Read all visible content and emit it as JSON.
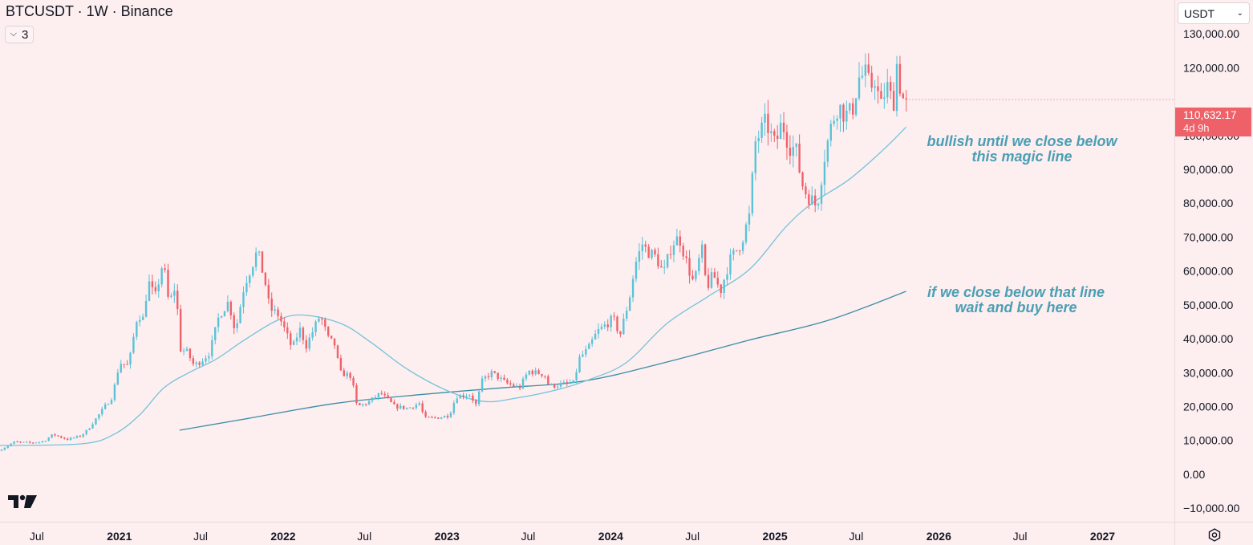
{
  "header": {
    "title": "BTCUSDT · 1W · Binance",
    "indicators_count": "3",
    "currency": "USDT"
  },
  "price_badge": {
    "price": "110,632.17",
    "countdown": "4d 9h",
    "color": "#ef6169"
  },
  "annotations": [
    {
      "lines": [
        "bullish until we close below",
        "this magic line"
      ]
    },
    {
      "lines": [
        "if we close below that line",
        "wait and buy here"
      ]
    }
  ],
  "colors": {
    "up": "#5ac3d8",
    "down": "#ef6169",
    "ma_fast": "#74c4da",
    "ma_slow": "#3b8ea5",
    "background": "#fdeef0",
    "note": "#4a9fb4"
  },
  "icons": {
    "logo": "tradingview-logo-icon",
    "settings": "gear-icon",
    "dropdown": "chevron-down-icon"
  },
  "chart_data": {
    "type": "candlestick",
    "symbol": "BTCUSDT",
    "interval": "1W",
    "exchange": "Binance",
    "y_tick_labels": [
      "130,000.00",
      "120,000.00",
      "110,632.17",
      "100,000.00",
      "90,000.00",
      "80,000.00",
      "70,000.00",
      "60,000.00",
      "50,000.00",
      "40,000.00",
      "30,000.00",
      "20,000.00",
      "10,000.00",
      "0.00",
      "−10,000.00"
    ],
    "y_ticks": [
      130000,
      120000,
      100000,
      90000,
      80000,
      70000,
      60000,
      50000,
      40000,
      30000,
      20000,
      10000,
      0,
      -10000
    ],
    "ylim": [
      -14000,
      140000
    ],
    "x_ticks": [
      {
        "label": "Jul",
        "date": "2020-07-01"
      },
      {
        "label": "2021",
        "date": "2021-01-01"
      },
      {
        "label": "Jul",
        "date": "2021-07-01"
      },
      {
        "label": "2022",
        "date": "2022-01-01"
      },
      {
        "label": "Jul",
        "date": "2022-07-01"
      },
      {
        "label": "2023",
        "date": "2023-01-01"
      },
      {
        "label": "Jul",
        "date": "2023-07-01"
      },
      {
        "label": "2024",
        "date": "2024-01-01"
      },
      {
        "label": "Jul",
        "date": "2024-07-01"
      },
      {
        "label": "2025",
        "date": "2025-01-01"
      },
      {
        "label": "Jul",
        "date": "2025-07-01"
      },
      {
        "label": "2026",
        "date": "2026-01-01"
      },
      {
        "label": "Jul",
        "date": "2026-07-01"
      },
      {
        "label": "2027",
        "date": "2027-01-01"
      }
    ],
    "xlim": [
      "2020-04-10",
      "2027-06-10"
    ],
    "last_price": 110632.17,
    "price_path": [
      [
        "2020-04-10",
        6900
      ],
      [
        "2020-05-15",
        9500
      ],
      [
        "2020-06-20",
        9300
      ],
      [
        "2020-07-20",
        9700
      ],
      [
        "2020-08-10",
        11800
      ],
      [
        "2020-09-10",
        10300
      ],
      [
        "2020-10-10",
        11300
      ],
      [
        "2020-10-25",
        13000
      ],
      [
        "2020-11-25",
        18500
      ],
      [
        "2020-12-20",
        23000
      ],
      [
        "2021-01-05",
        33000
      ],
      [
        "2021-01-25",
        32000
      ],
      [
        "2021-02-15",
        48000
      ],
      [
        "2021-02-25",
        45000
      ],
      [
        "2021-03-10",
        57000
      ],
      [
        "2021-03-25",
        52000
      ],
      [
        "2021-04-12",
        63000
      ],
      [
        "2021-04-25",
        50000
      ],
      [
        "2021-05-10",
        56000
      ],
      [
        "2021-05-20",
        37000
      ],
      [
        "2021-06-05",
        36000
      ],
      [
        "2021-06-20",
        32000
      ],
      [
        "2021-07-10",
        34000
      ],
      [
        "2021-07-25",
        36000
      ],
      [
        "2021-08-15",
        47000
      ],
      [
        "2021-09-05",
        51000
      ],
      [
        "2021-09-20",
        42000
      ],
      [
        "2021-10-10",
        56000
      ],
      [
        "2021-10-25",
        61000
      ],
      [
        "2021-11-08",
        66000
      ],
      [
        "2021-11-25",
        57000
      ],
      [
        "2021-12-05",
        49000
      ],
      [
        "2021-12-25",
        47000
      ],
      [
        "2022-01-10",
        42000
      ],
      [
        "2022-01-25",
        37000
      ],
      [
        "2022-02-10",
        43000
      ],
      [
        "2022-02-25",
        38000
      ],
      [
        "2022-03-28",
        47000
      ],
      [
        "2022-04-15",
        40000
      ],
      [
        "2022-05-01",
        38000
      ],
      [
        "2022-05-10",
        30000
      ],
      [
        "2022-06-05",
        29000
      ],
      [
        "2022-06-18",
        20000
      ],
      [
        "2022-07-10",
        21000
      ],
      [
        "2022-08-10",
        24000
      ],
      [
        "2022-09-10",
        20000
      ],
      [
        "2022-10-10",
        19500
      ],
      [
        "2022-11-05",
        21000
      ],
      [
        "2022-11-15",
        16500
      ],
      [
        "2022-12-20",
        16800
      ],
      [
        "2023-01-10",
        17500
      ],
      [
        "2023-01-25",
        23000
      ],
      [
        "2023-02-25",
        23500
      ],
      [
        "2023-03-10",
        20500
      ],
      [
        "2023-03-25",
        28000
      ],
      [
        "2023-04-15",
        30000
      ],
      [
        "2023-05-15",
        27000
      ],
      [
        "2023-06-15",
        25500
      ],
      [
        "2023-07-05",
        30500
      ],
      [
        "2023-08-10",
        29500
      ],
      [
        "2023-08-20",
        26000
      ],
      [
        "2023-09-15",
        26500
      ],
      [
        "2023-10-15",
        27000
      ],
      [
        "2023-10-25",
        34000
      ],
      [
        "2023-11-15",
        37000
      ],
      [
        "2023-12-05",
        42000
      ],
      [
        "2024-01-10",
        46000
      ],
      [
        "2024-01-25",
        41000
      ],
      [
        "2024-02-15",
        52000
      ],
      [
        "2024-02-28",
        62000
      ],
      [
        "2024-03-15",
        68000
      ],
      [
        "2024-03-25",
        66000
      ],
      [
        "2024-04-15",
        64000
      ],
      [
        "2024-05-01",
        59000
      ],
      [
        "2024-05-20",
        68000
      ],
      [
        "2024-06-05",
        70000
      ],
      [
        "2024-06-25",
        61000
      ],
      [
        "2024-07-08",
        56000
      ],
      [
        "2024-07-25",
        67000
      ],
      [
        "2024-08-05",
        55000
      ],
      [
        "2024-08-20",
        59000
      ],
      [
        "2024-09-05",
        54000
      ],
      [
        "2024-09-25",
        63000
      ],
      [
        "2024-10-20",
        68000
      ],
      [
        "2024-11-08",
        76000
      ],
      [
        "2024-11-22",
        98000
      ],
      [
        "2024-12-15",
        104000
      ],
      [
        "2025-01-05",
        97000
      ],
      [
        "2025-01-20",
        104000
      ],
      [
        "2025-02-05",
        97000
      ],
      [
        "2025-02-20",
        96000
      ],
      [
        "2025-03-05",
        86000
      ],
      [
        "2025-03-15",
        83000
      ],
      [
        "2025-04-08",
        79000
      ],
      [
        "2025-04-25",
        94000
      ],
      [
        "2025-05-12",
        104000
      ],
      [
        "2025-05-25",
        109000
      ],
      [
        "2025-06-10",
        106000
      ],
      [
        "2025-06-25",
        107000
      ],
      [
        "2025-07-10",
        117000
      ],
      [
        "2025-07-25",
        118000
      ],
      [
        "2025-08-05",
        114000
      ],
      [
        "2025-08-15",
        117000
      ],
      [
        "2025-08-28",
        108000
      ],
      [
        "2025-09-10",
        115000
      ],
      [
        "2025-09-25",
        109000
      ],
      [
        "2025-10-05",
        124000
      ],
      [
        "2025-10-12",
        111000
      ],
      [
        "2025-10-20",
        110632.17
      ]
    ],
    "ma_fast_points": [
      [
        "2020-04-10",
        8500
      ],
      [
        "2020-10-10",
        9000
      ],
      [
        "2020-12-20",
        11800
      ],
      [
        "2021-02-15",
        17500
      ],
      [
        "2021-04-10",
        25500
      ],
      [
        "2021-06-05",
        30000
      ],
      [
        "2021-08-05",
        34000
      ],
      [
        "2021-10-05",
        39500
      ],
      [
        "2021-12-20",
        45500
      ],
      [
        "2022-02-15",
        47000
      ],
      [
        "2022-05-10",
        44500
      ],
      [
        "2022-07-15",
        39000
      ],
      [
        "2022-10-05",
        31000
      ],
      [
        "2023-01-05",
        24500
      ],
      [
        "2023-03-25",
        21500
      ],
      [
        "2023-06-05",
        22500
      ],
      [
        "2023-09-05",
        25000
      ],
      [
        "2023-11-15",
        28000
      ],
      [
        "2024-02-05",
        33000
      ],
      [
        "2024-05-05",
        44500
      ],
      [
        "2024-08-05",
        52500
      ],
      [
        "2024-11-05",
        60500
      ],
      [
        "2025-01-25",
        73000
      ],
      [
        "2025-03-25",
        80000
      ],
      [
        "2025-06-15",
        87000
      ],
      [
        "2025-09-01",
        96000
      ],
      [
        "2025-10-20",
        102500
      ]
    ],
    "ma_slow_points": [
      [
        "2021-05-15",
        13000
      ],
      [
        "2021-10-15",
        16500
      ],
      [
        "2022-05-01",
        21000
      ],
      [
        "2022-11-01",
        23500
      ],
      [
        "2023-05-01",
        25500
      ],
      [
        "2023-11-01",
        27500
      ],
      [
        "2024-05-01",
        33000
      ],
      [
        "2024-11-01",
        39500
      ],
      [
        "2025-05-01",
        45500
      ],
      [
        "2025-10-20",
        54000
      ]
    ]
  }
}
